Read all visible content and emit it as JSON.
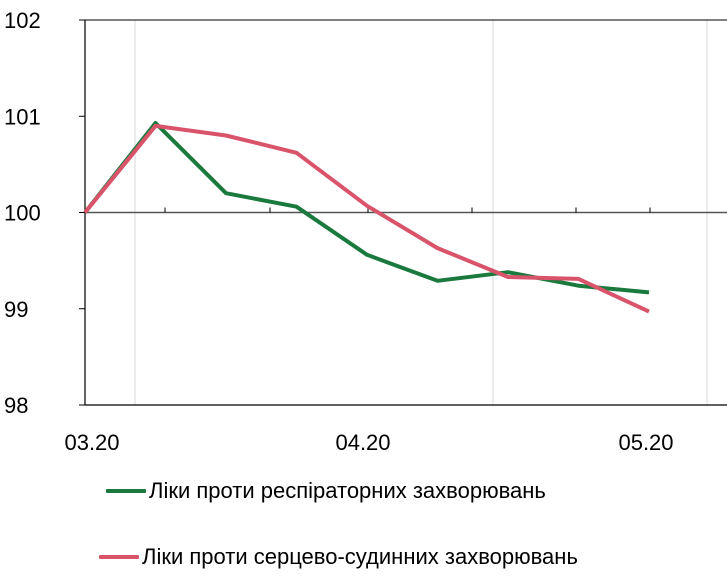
{
  "chart_data": {
    "type": "line",
    "title": "",
    "xlabel": "",
    "ylabel": "",
    "x_ticks": [
      "03.20",
      "04.20",
      "05.20"
    ],
    "x_points": [
      "03.20",
      "03.20",
      "03.20",
      "04.20",
      "04.20",
      "04.20",
      "05.20",
      "05.20",
      "05.20"
    ],
    "ylim": [
      98,
      102
    ],
    "y_ticks": [
      98,
      99,
      100,
      101,
      102
    ],
    "baseline": 100,
    "grid": "vertical",
    "legend_position": "bottom",
    "series": [
      {
        "name": "Ліки проти респіраторних захворювань",
        "color": "#1a7a3e",
        "values": [
          100.0,
          100.93,
          100.2,
          100.06,
          99.56,
          99.29,
          99.38,
          99.24,
          99.17
        ]
      },
      {
        "name": "Ліки проти серцево-судинних захворювань",
        "color": "#d9536b",
        "values": [
          100.0,
          100.9,
          100.8,
          100.62,
          100.07,
          99.63,
          99.33,
          99.31,
          98.97
        ]
      }
    ]
  }
}
